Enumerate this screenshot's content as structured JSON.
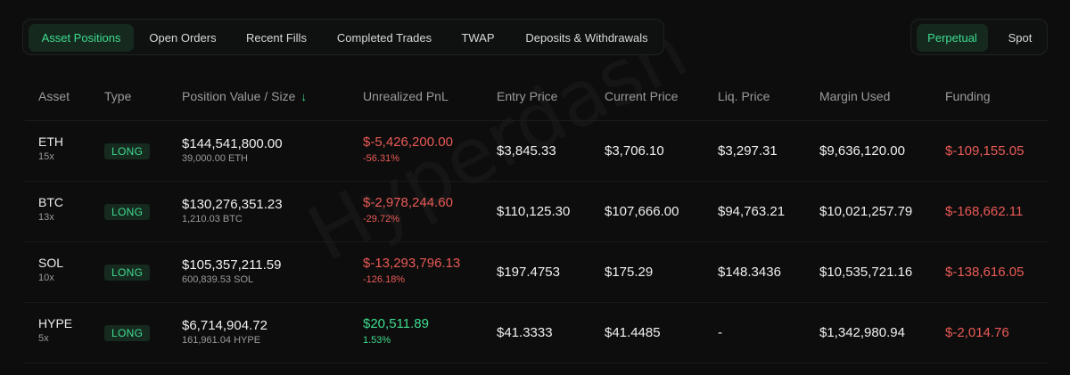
{
  "tabs": [
    {
      "label": "Asset Positions",
      "active": true
    },
    {
      "label": "Open Orders",
      "active": false
    },
    {
      "label": "Recent Fills",
      "active": false
    },
    {
      "label": "Completed Trades",
      "active": false
    },
    {
      "label": "TWAP",
      "active": false
    },
    {
      "label": "Deposits & Withdrawals",
      "active": false
    }
  ],
  "market_toggle": [
    {
      "label": "Perpetual",
      "active": true
    },
    {
      "label": "Spot",
      "active": false
    }
  ],
  "table": {
    "headers": [
      "Asset",
      "Type",
      "Position Value / Size",
      "Unrealized PnL",
      "Entry Price",
      "Current Price",
      "Liq. Price",
      "Margin Used",
      "Funding"
    ],
    "sort_icon": "arrow-down",
    "rows": [
      {
        "asset": "ETH",
        "leverage": "15x",
        "type": "LONG",
        "position_value": "$144,541,800.00",
        "size": "39,000.00 ETH",
        "pnl": "$-5,426,200.00",
        "pnl_pct": "-56.31%",
        "pnl_sign": "neg",
        "entry": "$3,845.33",
        "current": "$3,706.10",
        "liq": "$3,297.31",
        "margin": "$9,636,120.00",
        "funding": "$-109,155.05"
      },
      {
        "asset": "BTC",
        "leverage": "13x",
        "type": "LONG",
        "position_value": "$130,276,351.23",
        "size": "1,210.03 BTC",
        "pnl": "$-2,978,244.60",
        "pnl_pct": "-29.72%",
        "pnl_sign": "neg",
        "entry": "$110,125.30",
        "current": "$107,666.00",
        "liq": "$94,763.21",
        "margin": "$10,021,257.79",
        "funding": "$-168,662.11"
      },
      {
        "asset": "SOL",
        "leverage": "10x",
        "type": "LONG",
        "position_value": "$105,357,211.59",
        "size": "600,839.53 SOL",
        "pnl": "$-13,293,796.13",
        "pnl_pct": "-126.18%",
        "pnl_sign": "neg",
        "entry": "$197.4753",
        "current": "$175.29",
        "liq": "$148.3436",
        "margin": "$10,535,721.16",
        "funding": "$-138,616.05"
      },
      {
        "asset": "HYPE",
        "leverage": "5x",
        "type": "LONG",
        "position_value": "$6,714,904.72",
        "size": "161,961.04 HYPE",
        "pnl": "$20,511.89",
        "pnl_pct": "1.53%",
        "pnl_sign": "pos",
        "entry": "$41.3333",
        "current": "$41.4485",
        "liq": "-",
        "margin": "$1,342,980.94",
        "funding": "$-2,014.76"
      }
    ]
  },
  "watermark": "Hyperdash",
  "colors": {
    "accent": "#3fdc8e",
    "negative": "#ea5a56",
    "background": "#0d0d0d"
  }
}
